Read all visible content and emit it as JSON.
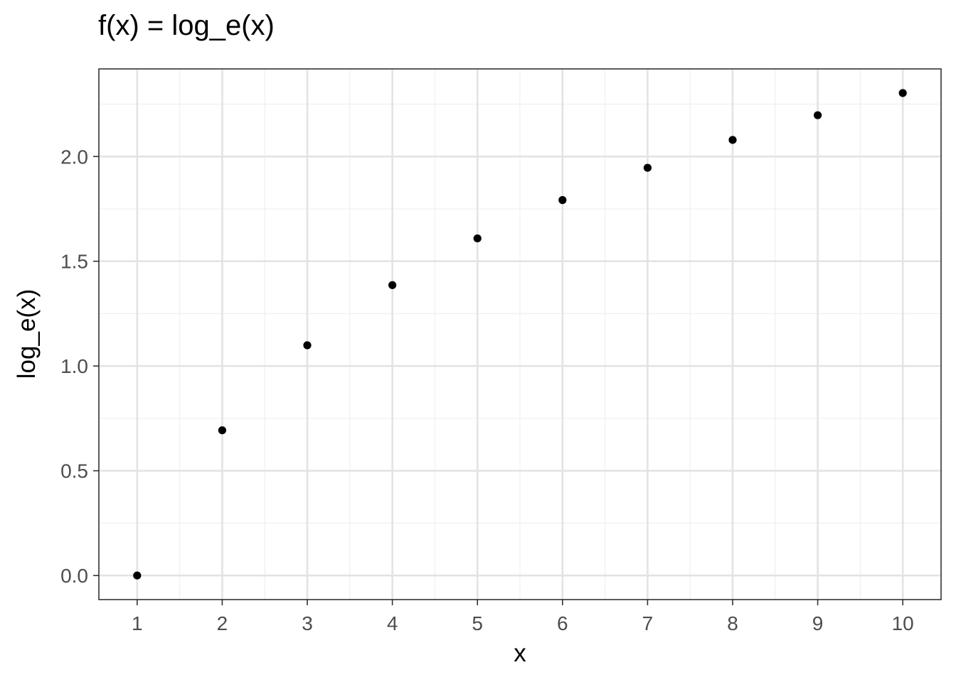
{
  "chart_data": {
    "type": "scatter",
    "title": "f(x) = log_e(x)",
    "xlabel": "x",
    "ylabel": "log_e(x)",
    "x": [
      1,
      2,
      3,
      4,
      5,
      6,
      7,
      8,
      9,
      10
    ],
    "y": [
      0.0,
      0.693,
      1.099,
      1.386,
      1.609,
      1.792,
      1.946,
      2.079,
      2.197,
      2.303
    ],
    "xlim": [
      0.55,
      10.45
    ],
    "ylim": [
      -0.115,
      2.418
    ],
    "xticks": [
      1,
      2,
      3,
      4,
      5,
      6,
      7,
      8,
      9,
      10
    ],
    "xtick_labels": [
      "1",
      "2",
      "3",
      "4",
      "5",
      "6",
      "7",
      "8",
      "9",
      "10"
    ],
    "yticks": [
      0.0,
      0.5,
      1.0,
      1.5,
      2.0
    ],
    "ytick_labels": [
      "0.0",
      "0.5",
      "1.0",
      "1.5",
      "2.0"
    ],
    "grid": true,
    "legend": "none",
    "colors": {
      "point": "#000000",
      "grid_major": "#e3e3e3",
      "grid_minor": "#f0f0f0",
      "panel_border": "#333333",
      "tick_label": "#4d4d4d"
    }
  }
}
